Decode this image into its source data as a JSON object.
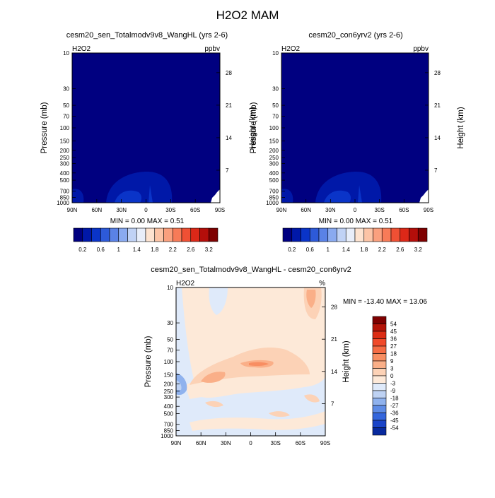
{
  "page_title": "H2O2 MAM",
  "chart_data": [
    {
      "type": "heatmap",
      "title": "cesm20_sen_Totalmodv9v8_WangHL (yrs 2-6)",
      "left_label": "H2O2",
      "right_label": "ppbv",
      "ylabel": "Pressure (mb)",
      "y2label": "Height (km)",
      "xticks": [
        "90N",
        "60N",
        "30N",
        "0",
        "30S",
        "60S",
        "90S"
      ],
      "yticks": [
        "10",
        "30",
        "50",
        "70",
        "100",
        "150",
        "200",
        "250",
        "300",
        "400",
        "500",
        "700",
        "850",
        "1000"
      ],
      "y2ticks": [
        "28",
        "21",
        "14",
        "7"
      ],
      "stats": "MIN =   0.00  MAX =   0.51",
      "colorbar": {
        "labels": [
          "0.2",
          "0.6",
          "1",
          "1.4",
          "1.8",
          "2.2",
          "2.6",
          "3.2"
        ],
        "colors": [
          "#000080",
          "#0018a8",
          "#0a34c8",
          "#2d5ad8",
          "#5a82e6",
          "#8aaaf0",
          "#c0d2f5",
          "#e8eefa",
          "#fde3d0",
          "#fcc4a6",
          "#faa07e",
          "#f77b58",
          "#ef5034",
          "#dc2818",
          "#b40e0a",
          "#7e0000"
        ]
      },
      "ylim": [
        1000,
        10
      ],
      "yscale": "log",
      "xlim": [
        90,
        -90
      ],
      "value_range": [
        0.0,
        0.51
      ]
    },
    {
      "type": "heatmap",
      "title": "cesm20_con6yrv2 (yrs 2-6)",
      "left_label": "H2O2",
      "right_label": "ppbv",
      "ylabel": "Pressure (mb)",
      "y2label": "Height (km)",
      "xticks": [
        "90N",
        "60N",
        "30N",
        "0",
        "30S",
        "60S",
        "90S"
      ],
      "yticks": [
        "10",
        "30",
        "50",
        "70",
        "100",
        "150",
        "200",
        "250",
        "300",
        "400",
        "500",
        "700",
        "850",
        "1000"
      ],
      "y2ticks": [
        "28",
        "21",
        "14",
        "7"
      ],
      "stats": "MIN =   0.00  MAX =   0.51",
      "colorbar": {
        "labels": [
          "0.2",
          "0.6",
          "1",
          "1.4",
          "1.8",
          "2.2",
          "2.6",
          "3.2"
        ],
        "colors": [
          "#000080",
          "#0018a8",
          "#0a34c8",
          "#2d5ad8",
          "#5a82e6",
          "#8aaaf0",
          "#c0d2f5",
          "#e8eefa",
          "#fde3d0",
          "#fcc4a6",
          "#faa07e",
          "#f77b58",
          "#ef5034",
          "#dc2818",
          "#b40e0a",
          "#7e0000"
        ]
      },
      "ylim": [
        1000,
        10
      ],
      "yscale": "log",
      "xlim": [
        90,
        -90
      ],
      "value_range": [
        0.0,
        0.51
      ]
    },
    {
      "type": "heatmap",
      "title": "cesm20_sen_Totalmodv9v8_WangHL - cesm20_con6yrv2",
      "left_label": "H2O2",
      "right_label": "%",
      "ylabel": "Pressure (mb)",
      "y2label": "Height (km)",
      "xticks": [
        "90N",
        "60N",
        "30N",
        "0",
        "30S",
        "60S",
        "90S"
      ],
      "yticks": [
        "10",
        "30",
        "50",
        "70",
        "100",
        "150",
        "200",
        "250",
        "300",
        "400",
        "500",
        "700",
        "850",
        "1000"
      ],
      "y2ticks": [
        "28",
        "21",
        "14",
        "7"
      ],
      "stats": "MIN = -13.40  MAX =  13.06",
      "colorbar": {
        "labels": [
          "54",
          "45",
          "36",
          "27",
          "18",
          "9",
          "3",
          "0",
          "-3",
          "-9",
          "-18",
          "-27",
          "-36",
          "-45",
          "-54"
        ],
        "colors": [
          "#7e0000",
          "#b41408",
          "#dc2c14",
          "#f04a2a",
          "#f66c44",
          "#f88e62",
          "#faaf88",
          "#fcd2b6",
          "#fde9d8",
          "#dfeafa",
          "#bed2f3",
          "#8fb2ee",
          "#5e8ce6",
          "#3466dc",
          "#1a44c8",
          "#082a9e"
        ]
      },
      "ylim": [
        1000,
        10
      ],
      "yscale": "log",
      "xlim": [
        90,
        -90
      ],
      "value_range": [
        -13.4,
        13.06
      ]
    }
  ]
}
